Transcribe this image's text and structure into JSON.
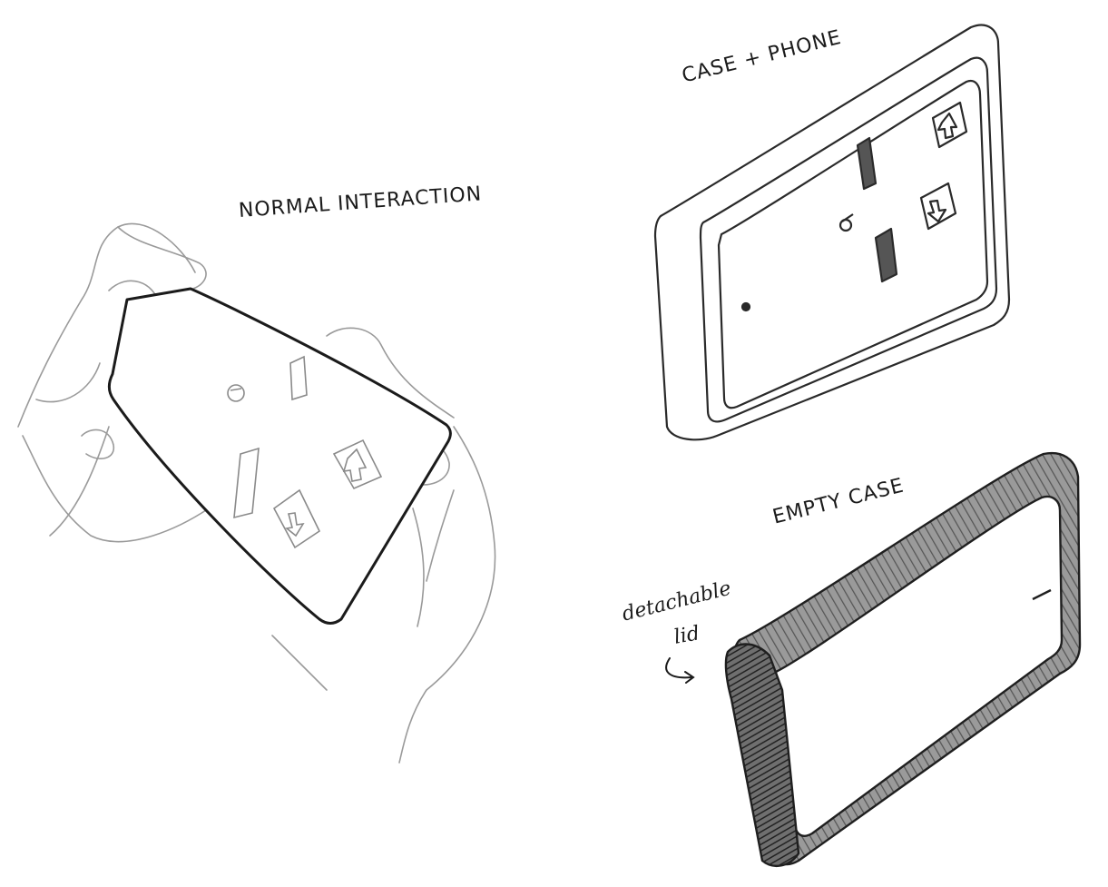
{
  "labels": {
    "normal_interaction": "NORMAL INTERACTION",
    "case_phone": "CASE + PHONE",
    "empty_case": "EMPTY CASE",
    "detachable": "detachable",
    "lid": "lid"
  },
  "colors": {
    "ink": "#1b1b1b",
    "pencil": "#8a8a8a",
    "shade": "#3a3a3a",
    "paper": "#ffffff"
  }
}
